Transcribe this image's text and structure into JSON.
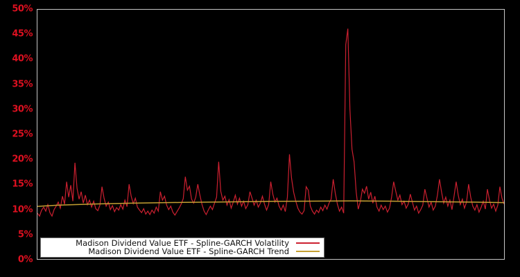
{
  "colors": {
    "background": "#000000",
    "plot_border": "#c8c8c8",
    "axis_label": "#dd1020",
    "volatility_line": "#cc2030",
    "trend_line": "#c5a032",
    "legend_bg": "#ffffff",
    "legend_border": "#777777",
    "legend_text": "#111111"
  },
  "legend": {
    "items": [
      {
        "label": "Madison Dividend Value ETF - Spline-GARCH Volatility",
        "color": "#cc2030"
      },
      {
        "label": "Madison Dividend Value ETF - Spline-GARCH Trend",
        "color": "#c5a032"
      }
    ]
  },
  "chart_data": {
    "type": "line",
    "title": "",
    "xlabel": "",
    "ylabel": "",
    "ylim": [
      0,
      50
    ],
    "grid": false,
    "legend_position": "inside-bottom-left",
    "x_axis_labels": [],
    "y_ticks": [
      {
        "value": 0,
        "label": "0%"
      },
      {
        "value": 5,
        "label": "5%"
      },
      {
        "value": 10,
        "label": "10%"
      },
      {
        "value": 15,
        "label": "15%"
      },
      {
        "value": 20,
        "label": "20%"
      },
      {
        "value": 25,
        "label": "25%"
      },
      {
        "value": 30,
        "label": "30%"
      },
      {
        "value": 35,
        "label": "35%"
      },
      {
        "value": 40,
        "label": "40%"
      },
      {
        "value": 45,
        "label": "45%"
      },
      {
        "value": 50,
        "label": "50%"
      }
    ],
    "series": [
      {
        "name": "Madison Dividend Value ETF - Spline-GARCH Volatility",
        "color": "#cc2030",
        "unit": "%",
        "values": [
          9.2,
          8.6,
          9.8,
          10.4,
          9.6,
          10.9,
          9.3,
          8.6,
          9.9,
          10.6,
          11.4,
          10.2,
          12.6,
          11.0,
          15.5,
          12.4,
          14.8,
          11.6,
          19.3,
          14.2,
          12.0,
          13.5,
          11.2,
          12.8,
          10.9,
          11.8,
          10.4,
          11.6,
          10.1,
          9.7,
          10.8,
          14.5,
          12.2,
          10.6,
          11.4,
          9.9,
          10.7,
          9.5,
          10.3,
          9.8,
          10.9,
          10.0,
          11.8,
          10.5,
          15.0,
          12.6,
          11.1,
          12.2,
          10.4,
          9.8,
          9.3,
          10.1,
          9.0,
          9.6,
          8.9,
          9.8,
          9.2,
          10.4,
          9.6,
          13.5,
          11.8,
          12.6,
          10.8,
          9.9,
          10.6,
          9.4,
          8.8,
          9.5,
          10.2,
          11.0,
          12.1,
          16.5,
          13.8,
          14.6,
          12.0,
          11.2,
          12.4,
          15.0,
          12.8,
          10.9,
          9.6,
          8.9,
          9.8,
          10.6,
          9.9,
          11.2,
          12.4,
          19.5,
          13.6,
          11.8,
          12.6,
          10.8,
          11.9,
          10.2,
          11.4,
          12.8,
          11.0,
          12.2,
          10.6,
          11.6,
          10.1,
          10.9,
          13.5,
          12.2,
          10.8,
          11.8,
          10.4,
          11.2,
          12.6,
          11.0,
          9.8,
          10.9,
          15.5,
          13.0,
          11.4,
          12.2,
          10.6,
          9.8,
          10.8,
          9.5,
          12.4,
          21.0,
          16.2,
          13.4,
          11.6,
          10.2,
          9.4,
          9.0,
          9.7,
          14.5,
          13.8,
          10.6,
          9.6,
          9.0,
          9.8,
          9.3,
          10.4,
          9.7,
          10.8,
          10.0,
          11.2,
          12.0,
          16.0,
          13.2,
          11.0,
          9.6,
          10.4,
          9.2,
          43.0,
          46.2,
          30.0,
          22.0,
          19.5,
          13.5,
          10.0,
          11.5,
          14.0,
          13.2,
          14.6,
          12.0,
          13.4,
          11.2,
          12.6,
          10.4,
          9.6,
          10.8,
          9.9,
          10.6,
          9.4,
          10.2,
          12.4,
          15.5,
          13.6,
          11.8,
          12.8,
          10.9,
          11.6,
          10.2,
          11.0,
          13.0,
          11.4,
          9.8,
          10.6,
          9.2,
          9.9,
          10.8,
          14.0,
          12.2,
          10.4,
          11.4,
          9.8,
          10.6,
          12.8,
          16.0,
          13.4,
          11.2,
          12.4,
          10.6,
          11.8,
          9.9,
          12.6,
          15.5,
          12.8,
          10.9,
          12.0,
          10.2,
          11.4,
          15.0,
          12.4,
          10.6,
          9.8,
          10.9,
          9.4,
          10.4,
          11.6,
          10.0,
          14.0,
          11.8,
          10.2,
          11.0,
          9.6,
          10.8,
          14.5,
          12.2,
          11.0
        ]
      },
      {
        "name": "Madison Dividend Value ETF - Spline-GARCH Trend",
        "color": "#c5a032",
        "unit": "%",
        "points": [
          [
            0,
            10.55
          ],
          [
            10,
            10.8
          ],
          [
            25,
            11.0
          ],
          [
            45,
            11.2
          ],
          [
            70,
            11.35
          ],
          [
            90,
            11.45
          ],
          [
            110,
            11.55
          ],
          [
            130,
            11.6
          ],
          [
            150,
            11.65
          ],
          [
            170,
            11.6
          ],
          [
            190,
            11.5
          ],
          [
            210,
            11.4
          ],
          [
            224,
            11.3
          ]
        ]
      }
    ]
  }
}
